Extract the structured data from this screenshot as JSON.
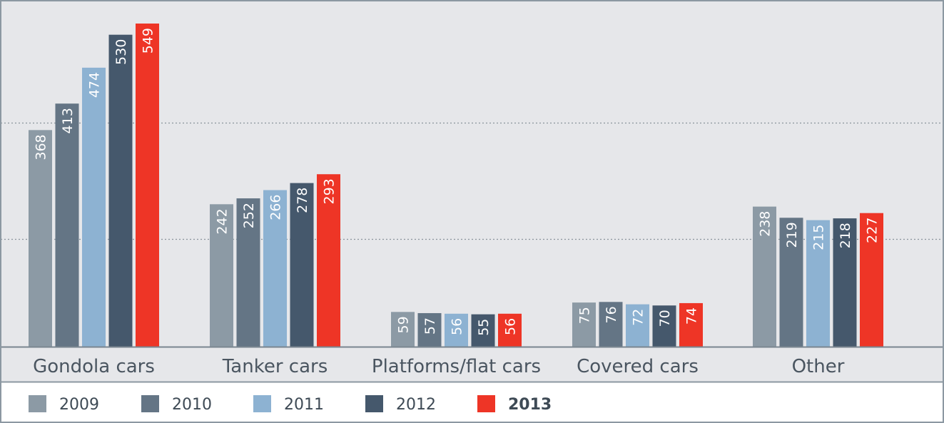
{
  "chart_data": {
    "type": "bar",
    "categories": [
      "Gondola cars",
      "Tanker cars",
      "Platforms/flat cars",
      "Covered cars",
      "Other"
    ],
    "series": [
      {
        "name": "2009",
        "values": [
          368,
          242,
          59,
          75,
          238
        ]
      },
      {
        "name": "2010",
        "values": [
          413,
          252,
          57,
          76,
          219
        ]
      },
      {
        "name": "2011",
        "values": [
          474,
          266,
          56,
          72,
          215
        ]
      },
      {
        "name": "2012",
        "values": [
          530,
          278,
          55,
          70,
          218
        ]
      },
      {
        "name": "2013",
        "values": [
          549,
          293,
          56,
          74,
          227
        ]
      }
    ],
    "ylim": [
      0,
      580
    ],
    "gridlines": [
      183,
      380
    ],
    "grid": "dotted horizontal",
    "legend_position": "bottom",
    "legend_bold": [
      "2013"
    ],
    "colors": {
      "2009": "#8c9aa5",
      "2010": "#647585",
      "2011": "#8db2d2",
      "2012": "#45586c",
      "2013": "#ee3526",
      "plot_background": "#e6e7ea",
      "axis": "#7a8690",
      "frame": "#8c98a2"
    }
  }
}
